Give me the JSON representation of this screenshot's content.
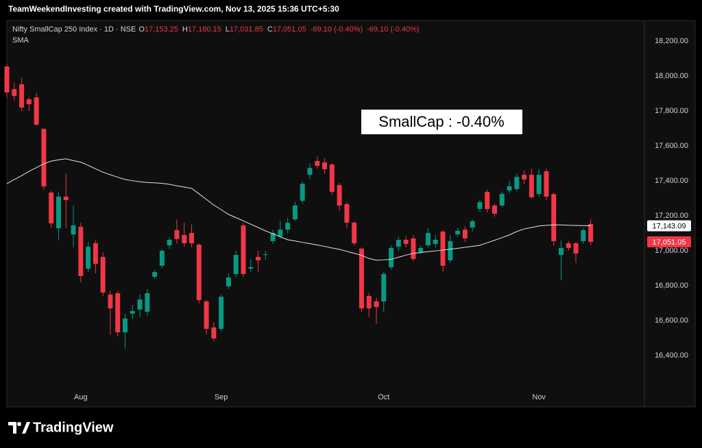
{
  "header": {
    "attribution": "TeamWeekendInvesting created with TradingView.com, Nov 13, 2025 15:36 UTC+5:30"
  },
  "footer": {
    "brand": "TradingView"
  },
  "chart_data": {
    "type": "candlestick",
    "legend_title": "Nifty SmallCap 250 Index · 1D · NSE",
    "ohlc_labels": [
      {
        "key": "O",
        "text": "17,153.25"
      },
      {
        "key": "H",
        "text": "17,180.15"
      },
      {
        "key": "L",
        "text": "17,031.85"
      },
      {
        "key": "C",
        "text": "17,051.05"
      }
    ],
    "changes": [
      "-69.10 (-0.40%)",
      "-69.10 (-0.40%)"
    ],
    "indicator_label": "SMA",
    "annotation": "SmallCap : -0.40%",
    "categories": [
      null,
      null,
      null,
      null,
      null,
      null,
      null,
      null,
      null,
      null,
      "Aug",
      null,
      null,
      null,
      null,
      null,
      null,
      null,
      null,
      null,
      null,
      null,
      null,
      null,
      null,
      null,
      null,
      null,
      null,
      "Sep",
      null,
      null,
      null,
      null,
      null,
      null,
      null,
      null,
      null,
      null,
      null,
      null,
      null,
      null,
      null,
      null,
      null,
      null,
      null,
      null,
      null,
      "Oct",
      null,
      null,
      null,
      null,
      null,
      null,
      null,
      null,
      null,
      null,
      null,
      null,
      null,
      null,
      null,
      null,
      null,
      null,
      null,
      null,
      "Nov",
      null,
      null,
      null,
      null,
      null,
      null,
      null
    ],
    "open": [
      18055,
      17925,
      17953,
      17867,
      17878,
      17698,
      17333,
      17129,
      17310,
      17094,
      17137,
      16898,
      17043,
      16965,
      16749,
      16757,
      16533,
      16640,
      16663,
      16651,
      16851,
      16914,
      17031,
      17118,
      17090,
      17102,
      17035,
      16710,
      16561,
      16553,
      16796,
      16867,
      17145,
      16898,
      16965,
      16976,
      17055,
      17082,
      17121,
      17180,
      17286,
      17435,
      17514,
      17506,
      17494,
      17376,
      17267,
      17161,
      17012,
      16741,
      16710,
      16710,
      16906,
      17023,
      17063,
      17071,
      16992,
      17031,
      17039,
      17110,
      16945,
      17094,
      17121,
      17133,
      17239,
      17337,
      17259,
      17259,
      17345,
      17353,
      17435,
      17435,
      17325,
      17455,
      17325,
      16976,
      17043,
      17043,
      17055,
      17153.25
    ],
    "high": [
      18070,
      17960,
      17990,
      17880,
      17905,
      17700,
      17345,
      17335,
      17440,
      17260,
      17160,
      17050,
      17060,
      16990,
      16770,
      16770,
      16640,
      16690,
      16750,
      16780,
      16890,
      17010,
      17075,
      17180,
      17160,
      17150,
      17040,
      16720,
      16590,
      16750,
      16870,
      17000,
      17160,
      16950,
      17000,
      17000,
      17120,
      17170,
      17190,
      17280,
      17395,
      17500,
      17540,
      17530,
      17500,
      17390,
      17280,
      17170,
      17020,
      16760,
      16730,
      16880,
      17030,
      17080,
      17085,
      17090,
      17030,
      17130,
      17090,
      17120,
      17090,
      17130,
      17140,
      17180,
      17290,
      17350,
      17270,
      17340,
      17400,
      17440,
      17460,
      17470,
      17470,
      17470,
      17330,
      17060,
      17055,
      17050,
      17130,
      17180.15
    ],
    "low": [
      17880,
      17860,
      17800,
      17800,
      17715,
      17350,
      17130,
      17060,
      17130,
      17020,
      16820,
      16880,
      16870,
      16740,
      16520,
      16510,
      16440,
      16610,
      16620,
      16630,
      16840,
      16900,
      17010,
      17040,
      17025,
      17020,
      16700,
      16520,
      16480,
      16540,
      16780,
      16850,
      16850,
      16880,
      16880,
      16950,
      17040,
      17070,
      17100,
      17170,
      17270,
      17410,
      17470,
      17440,
      17320,
      17230,
      17130,
      17030,
      16650,
      16620,
      16580,
      16650,
      16890,
      17000,
      17020,
      16940,
      16980,
      17020,
      17020,
      16880,
      16930,
      17080,
      17050,
      17110,
      17220,
      17220,
      17195,
      17250,
      17330,
      17340,
      17380,
      17300,
      17310,
      17290,
      17030,
      16830,
      17000,
      16930,
      17040,
      17031.85
    ],
    "close": [
      17906,
      17886,
      17820,
      17839,
      17722,
      17368,
      17157,
      17310,
      17290,
      17145,
      16855,
      17023,
      16925,
      16761,
      16670,
      16533,
      16612,
      16655,
      16721,
      16757,
      16878,
      17000,
      17063,
      17067,
      17043,
      17043,
      16718,
      16553,
      16498,
      16737,
      16847,
      16976,
      16867,
      16906,
      16945,
      16980,
      17102,
      17121,
      17160,
      17259,
      17384,
      17474,
      17486,
      17467,
      17337,
      17259,
      17161,
      17043,
      16670,
      16670,
      16678,
      16867,
      17016,
      17063,
      17039,
      16953,
      17016,
      17102,
      17063,
      16914,
      17055,
      17114,
      17071,
      17169,
      17278,
      17239,
      17212,
      17325,
      17369,
      17423,
      17408,
      17306,
      17435,
      17310,
      17055,
      17016,
      17016,
      16984,
      17118,
      17051.05
    ],
    "up_color": "#089981",
    "down_color": "#f23645",
    "series": [
      {
        "name": "SMA",
        "color": "#e6e6e6",
        "values": [
          17384,
          17408,
          17430,
          17455,
          17476,
          17498,
          17513,
          17521,
          17526,
          17516,
          17507,
          17489,
          17469,
          17450,
          17435,
          17421,
          17408,
          17401,
          17395,
          17391,
          17389,
          17386,
          17380,
          17372,
          17365,
          17357,
          17326,
          17294,
          17262,
          17235,
          17208,
          17190,
          17171,
          17152,
          17133,
          17114,
          17097,
          17080,
          17063,
          17056,
          17048,
          17041,
          17033,
          17025,
          17016,
          17008,
          16997,
          16985,
          16974,
          16956,
          16946,
          16948,
          16951,
          16963,
          16975,
          16985,
          16990,
          16995,
          16999,
          17004,
          17009,
          17014,
          17020,
          17025,
          17031,
          17046,
          17060,
          17075,
          17091,
          17110,
          17125,
          17133,
          17142,
          17146,
          17148,
          17148,
          17146,
          17145,
          17144,
          17143.09
        ]
      }
    ],
    "price_markers": [
      {
        "value": 17143.09,
        "label": "17,143.09",
        "bg": "#ffffff",
        "fg": "#000000"
      },
      {
        "value": 17051.05,
        "label": "17,051.05",
        "bg": "#f23645",
        "fg": "#ffffff"
      }
    ],
    "ylim": [
      16106,
      18318
    ],
    "yticks": [
      {
        "value": 16400,
        "label": "16,400.00"
      },
      {
        "value": 16600,
        "label": "16,600.00"
      },
      {
        "value": 16800,
        "label": "16,800.00"
      },
      {
        "value": 17000,
        "label": "17,000.00"
      },
      {
        "value": 17200,
        "label": "17,200.00"
      },
      {
        "value": 17400,
        "label": "17,400.00"
      },
      {
        "value": 17600,
        "label": "17,600.00"
      },
      {
        "value": 17800,
        "label": "17,800.00"
      },
      {
        "value": 18000,
        "label": "18,000.00"
      },
      {
        "value": 18200,
        "label": "18,200.00"
      }
    ],
    "grid": false
  }
}
